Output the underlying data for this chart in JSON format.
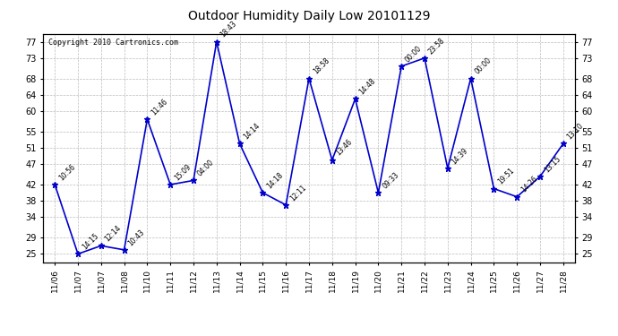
{
  "title": "Outdoor Humidity Daily Low 20101129",
  "copyright": "Copyright 2010 Cartronics.com",
  "line_color": "#0000CC",
  "marker_color": "#0000CC",
  "bg_color": "#ffffff",
  "grid_color": "#bbbbbb",
  "x_indices": [
    0,
    1,
    2,
    3,
    4,
    5,
    6,
    7,
    8,
    9,
    10,
    11,
    12,
    13,
    14,
    15,
    16,
    17,
    18,
    19,
    20,
    21,
    22
  ],
  "values": [
    42,
    25,
    27,
    26,
    58,
    42,
    43,
    77,
    52,
    40,
    37,
    68,
    48,
    63,
    40,
    71,
    73,
    46,
    68,
    41,
    39,
    44,
    52
  ],
  "point_labels": [
    "10:56",
    "14:15",
    "12:14",
    "10:43",
    "11:46",
    "15:09",
    "04:00",
    "18:43",
    "14:14",
    "14:18",
    "12:11",
    "18:58",
    "13:46",
    "14:48",
    "09:33",
    "00:00",
    "23:58",
    "14:39",
    "00:00",
    "19:51",
    "14:26",
    "13:15",
    "13:10"
  ],
  "xtick_labels": [
    "11/06",
    "11/07",
    "11/07",
    "11/08",
    "11/10",
    "11/11",
    "11/12",
    "11/13",
    "11/14",
    "11/15",
    "11/16",
    "11/17",
    "11/18",
    "11/19",
    "11/20",
    "11/21",
    "11/22",
    "11/23",
    "11/24",
    "11/25",
    "11/26",
    "11/27",
    "11/28"
  ],
  "ytick_vals": [
    25,
    29,
    34,
    38,
    42,
    47,
    51,
    55,
    60,
    64,
    68,
    73,
    77
  ],
  "ylim": [
    23,
    79
  ],
  "xlim": [
    -0.5,
    22.5
  ]
}
